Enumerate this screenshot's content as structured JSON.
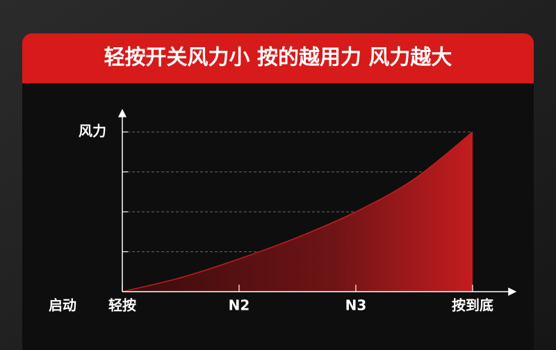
{
  "chart_data": {
    "type": "area",
    "title": "轻按开关风力小 按的越用力 风力越大",
    "ylabel": "风力",
    "origin_label": "启动",
    "categories": [
      "轻按",
      null,
      "N2",
      null,
      "N3",
      null,
      "按到底"
    ],
    "values": [
      0,
      0.35,
      0.82,
      1.36,
      2.0,
      2.82,
      4
    ],
    "color": "#c81e1e",
    "ylim": [
      0,
      4
    ],
    "yticks": [
      1,
      2,
      3,
      4
    ],
    "grid": true
  }
}
